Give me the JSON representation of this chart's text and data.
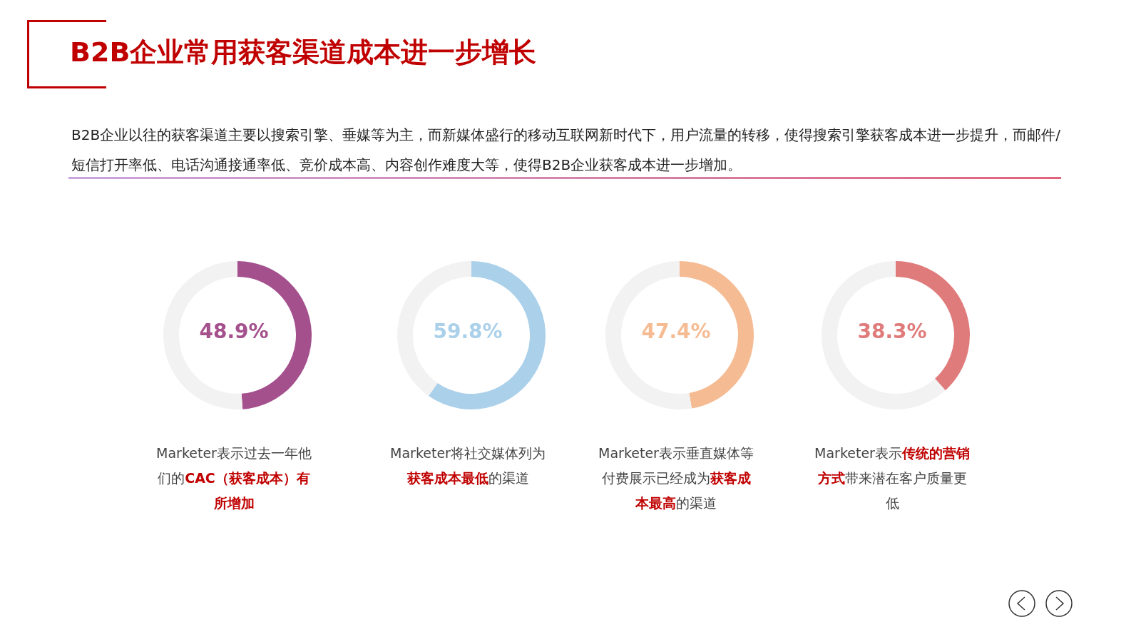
{
  "chart_data": [
    {
      "type": "other",
      "title": "B2B企业常用获客渠道成本进一步增长",
      "subtitle": "B2B企业以往的获客渠道主要以搜索引擎、垂媒等为主，而新媒体盛行的移动互联网新时代下，用户流量的转移，使得搜索引擎获客成本进一步提升，而邮件/短信打开率低、电话沟通接通率低、竞价成本高、内容创作难度大等，使得B2B企业获客成本进一步增加。"
    },
    {
      "type": "donut",
      "title": "48.9%",
      "categories": [
        null,
        null
      ],
      "values": [
        48.9,
        51.1
      ],
      "colors": [
        "#a4508d",
        "#f2f2f2"
      ],
      "annotations": [
        "Marketer表示过去一年他们的",
        "CAC（获客成本）有所增加"
      ]
    },
    {
      "type": "donut",
      "title": "59.8%",
      "categories": [
        null,
        null
      ],
      "values": [
        59.8,
        40.2
      ],
      "colors": [
        "#abd0ea",
        "#f2f2f2"
      ],
      "annotations": [
        "Marketer将社交媒体列为",
        "获客成本最低",
        "的渠道"
      ]
    },
    {
      "type": "donut",
      "title": "47.4%",
      "categories": [
        null,
        null
      ],
      "values": [
        47.4,
        52.6
      ],
      "colors": [
        "#f5bc94",
        "#f2f2f2"
      ],
      "annotations": [
        "Marketer表示垂直媒体等付费展示已经成为",
        "获客成本最高",
        "的渠道"
      ]
    },
    {
      "type": "donut",
      "title": "38.3%",
      "categories": [
        null,
        null
      ],
      "values": [
        38.3,
        61.7
      ],
      "colors": [
        "#e07b7b",
        "#f2f2f2"
      ],
      "annotations": [
        "Marketer表示",
        "传统的营销方式",
        "带来潜在客户质量更低"
      ]
    }
  ]
}
